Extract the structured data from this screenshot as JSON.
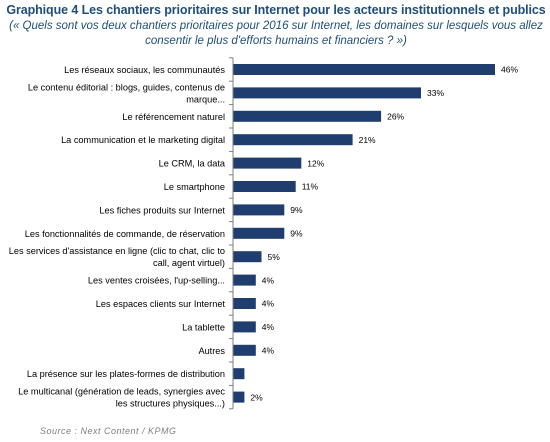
{
  "title": "Graphique 4 Les chantiers prioritaires sur Internet pour les acteurs institutionnels et publics",
  "subtitle_lines": [
    "(« Quels sont vos deux chantiers prioritaires pour 2016 sur Internet, les domaines sur lesquels vous allez",
    "consentir le plus d'efforts humains et financiers ? »)"
  ],
  "source": "Source : Next Content / KPMG",
  "colors": {
    "bar": "#1f3d6e",
    "axis": "#7f7f7f",
    "title": "#1f4e79"
  },
  "chart_data": {
    "type": "bar",
    "orientation": "horizontal",
    "categories": [
      [
        "Les réseaux sociaux,  les communautés"
      ],
      [
        "Le contenu éditorial : blogs, guides, contenus de",
        "marque..."
      ],
      [
        "Le référencement naturel"
      ],
      [
        "La communication  et le marketing  digital"
      ],
      [
        "Le CRM, la data"
      ],
      [
        "Le smartphone"
      ],
      [
        "Les fiches produits sur Internet"
      ],
      [
        "Les fonctionnalités de commande,  de réservation"
      ],
      [
        "Les services d'assistance  en ligne (clic to chat,  clic to",
        "call, agent virtuel)"
      ],
      [
        "Les ventes croisées, l'up-selling..."
      ],
      [
        "Les espaces  clients sur Internet"
      ],
      [
        "La tablette"
      ],
      [
        "Autres"
      ],
      [
        "La présence sur les plates-formes de distribution"
      ],
      [
        "Le multicanal  (génération de leads, synergies avec",
        "les structures physiques...)"
      ]
    ],
    "values": [
      46,
      33,
      26,
      21,
      12,
      11,
      9,
      9,
      5,
      4,
      4,
      4,
      4,
      2,
      2
    ],
    "value_labels": [
      "46%",
      "33%",
      "26%",
      "21%",
      "12%",
      "11%",
      "9%",
      "9%",
      "5%",
      "4%",
      "4%",
      "4%",
      "4%",
      "",
      "2%"
    ],
    "xlim": [
      0,
      46
    ],
    "grid": false,
    "legend": "none"
  }
}
